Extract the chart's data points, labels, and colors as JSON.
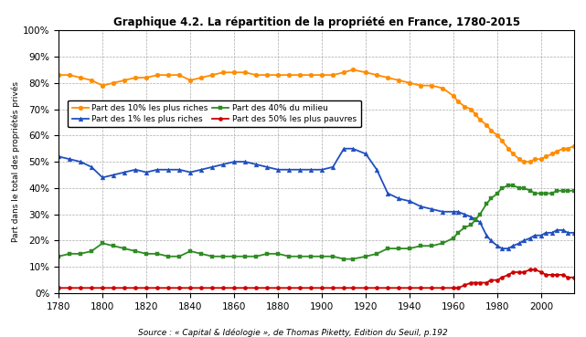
{
  "title": "Graphique 4.2. La répartition de la propriété en France, 1780-2015",
  "ylabel": "Part dans le total des propriétés privés",
  "source": "Source : « Capital & Idéologie », de Thomas Piketty, Edition du Seuil, p.192",
  "xlim": [
    1780,
    2015
  ],
  "ylim": [
    0,
    1.0
  ],
  "yticks": [
    0.0,
    0.1,
    0.2,
    0.3,
    0.4,
    0.5,
    0.6,
    0.7,
    0.8,
    0.9,
    1.0
  ],
  "xticks": [
    1780,
    1800,
    1820,
    1840,
    1860,
    1880,
    1900,
    1920,
    1940,
    1960,
    1980,
    2000
  ],
  "series": {
    "top10": {
      "label": "Part des 10% les plus riches",
      "color": "#FF8C00",
      "marker": "o",
      "markersize": 3.5,
      "x": [
        1780,
        1785,
        1790,
        1795,
        1800,
        1805,
        1810,
        1815,
        1820,
        1825,
        1830,
        1835,
        1840,
        1845,
        1850,
        1855,
        1860,
        1865,
        1870,
        1875,
        1880,
        1885,
        1890,
        1895,
        1900,
        1905,
        1910,
        1914,
        1920,
        1925,
        1930,
        1935,
        1940,
        1945,
        1950,
        1955,
        1960,
        1962,
        1965,
        1968,
        1970,
        1972,
        1975,
        1977,
        1980,
        1982,
        1985,
        1987,
        1990,
        1992,
        1995,
        1997,
        2000,
        2002,
        2005,
        2007,
        2010,
        2012,
        2015
      ],
      "y": [
        0.83,
        0.83,
        0.82,
        0.81,
        0.79,
        0.8,
        0.81,
        0.82,
        0.82,
        0.83,
        0.83,
        0.83,
        0.81,
        0.82,
        0.83,
        0.84,
        0.84,
        0.84,
        0.83,
        0.83,
        0.83,
        0.83,
        0.83,
        0.83,
        0.83,
        0.83,
        0.84,
        0.85,
        0.84,
        0.83,
        0.82,
        0.81,
        0.8,
        0.79,
        0.79,
        0.78,
        0.75,
        0.73,
        0.71,
        0.7,
        0.68,
        0.66,
        0.64,
        0.62,
        0.6,
        0.58,
        0.55,
        0.53,
        0.51,
        0.5,
        0.5,
        0.51,
        0.51,
        0.52,
        0.53,
        0.54,
        0.55,
        0.55,
        0.56
      ]
    },
    "top1": {
      "label": "Part des 1% les plus riches",
      "color": "#1F4FBF",
      "marker": "^",
      "markersize": 3.5,
      "x": [
        1780,
        1785,
        1790,
        1795,
        1800,
        1805,
        1810,
        1815,
        1820,
        1825,
        1830,
        1835,
        1840,
        1845,
        1850,
        1855,
        1860,
        1865,
        1870,
        1875,
        1880,
        1885,
        1890,
        1895,
        1900,
        1905,
        1910,
        1914,
        1920,
        1925,
        1930,
        1935,
        1940,
        1945,
        1950,
        1955,
        1960,
        1962,
        1965,
        1968,
        1970,
        1972,
        1975,
        1977,
        1980,
        1982,
        1985,
        1987,
        1990,
        1992,
        1995,
        1997,
        2000,
        2002,
        2005,
        2007,
        2010,
        2012,
        2015
      ],
      "y": [
        0.52,
        0.51,
        0.5,
        0.48,
        0.44,
        0.45,
        0.46,
        0.47,
        0.46,
        0.47,
        0.47,
        0.47,
        0.46,
        0.47,
        0.48,
        0.49,
        0.5,
        0.5,
        0.49,
        0.48,
        0.47,
        0.47,
        0.47,
        0.47,
        0.47,
        0.48,
        0.55,
        0.55,
        0.53,
        0.47,
        0.38,
        0.36,
        0.35,
        0.33,
        0.32,
        0.31,
        0.31,
        0.31,
        0.3,
        0.29,
        0.28,
        0.27,
        0.22,
        0.2,
        0.18,
        0.17,
        0.17,
        0.18,
        0.19,
        0.2,
        0.21,
        0.22,
        0.22,
        0.23,
        0.23,
        0.24,
        0.24,
        0.23,
        0.23
      ]
    },
    "mid40": {
      "label": "Part des 40% du milieu",
      "color": "#2E8B22",
      "marker": "s",
      "markersize": 3.5,
      "x": [
        1780,
        1785,
        1790,
        1795,
        1800,
        1805,
        1810,
        1815,
        1820,
        1825,
        1830,
        1835,
        1840,
        1845,
        1850,
        1855,
        1860,
        1865,
        1870,
        1875,
        1880,
        1885,
        1890,
        1895,
        1900,
        1905,
        1910,
        1914,
        1920,
        1925,
        1930,
        1935,
        1940,
        1945,
        1950,
        1955,
        1960,
        1962,
        1965,
        1968,
        1970,
        1972,
        1975,
        1977,
        1980,
        1982,
        1985,
        1987,
        1990,
        1992,
        1995,
        1997,
        2000,
        2002,
        2005,
        2007,
        2010,
        2012,
        2015
      ],
      "y": [
        0.14,
        0.15,
        0.15,
        0.16,
        0.19,
        0.18,
        0.17,
        0.16,
        0.15,
        0.15,
        0.14,
        0.14,
        0.16,
        0.15,
        0.14,
        0.14,
        0.14,
        0.14,
        0.14,
        0.15,
        0.15,
        0.14,
        0.14,
        0.14,
        0.14,
        0.14,
        0.13,
        0.13,
        0.14,
        0.15,
        0.17,
        0.17,
        0.17,
        0.18,
        0.18,
        0.19,
        0.21,
        0.23,
        0.25,
        0.26,
        0.28,
        0.3,
        0.34,
        0.36,
        0.38,
        0.4,
        0.41,
        0.41,
        0.4,
        0.4,
        0.39,
        0.38,
        0.38,
        0.38,
        0.38,
        0.39,
        0.39,
        0.39,
        0.39
      ]
    },
    "bot50": {
      "label": "Part des 50% les plus pauvres",
      "color": "#CC0000",
      "marker": "o",
      "markersize": 3.0,
      "x": [
        1780,
        1785,
        1790,
        1795,
        1800,
        1805,
        1810,
        1815,
        1820,
        1825,
        1830,
        1835,
        1840,
        1845,
        1850,
        1855,
        1860,
        1865,
        1870,
        1875,
        1880,
        1885,
        1890,
        1895,
        1900,
        1905,
        1910,
        1914,
        1920,
        1925,
        1930,
        1935,
        1940,
        1945,
        1950,
        1955,
        1960,
        1962,
        1965,
        1968,
        1970,
        1972,
        1975,
        1977,
        1980,
        1982,
        1985,
        1987,
        1990,
        1992,
        1995,
        1997,
        2000,
        2002,
        2005,
        2007,
        2010,
        2012,
        2015
      ],
      "y": [
        0.02,
        0.02,
        0.02,
        0.02,
        0.02,
        0.02,
        0.02,
        0.02,
        0.02,
        0.02,
        0.02,
        0.02,
        0.02,
        0.02,
        0.02,
        0.02,
        0.02,
        0.02,
        0.02,
        0.02,
        0.02,
        0.02,
        0.02,
        0.02,
        0.02,
        0.02,
        0.02,
        0.02,
        0.02,
        0.02,
        0.02,
        0.02,
        0.02,
        0.02,
        0.02,
        0.02,
        0.02,
        0.02,
        0.03,
        0.04,
        0.04,
        0.04,
        0.04,
        0.05,
        0.05,
        0.06,
        0.07,
        0.08,
        0.08,
        0.08,
        0.09,
        0.09,
        0.08,
        0.07,
        0.07,
        0.07,
        0.07,
        0.06,
        0.06
      ]
    }
  },
  "background_color": "#FFFFFF",
  "grid_color": "#AAAAAA"
}
